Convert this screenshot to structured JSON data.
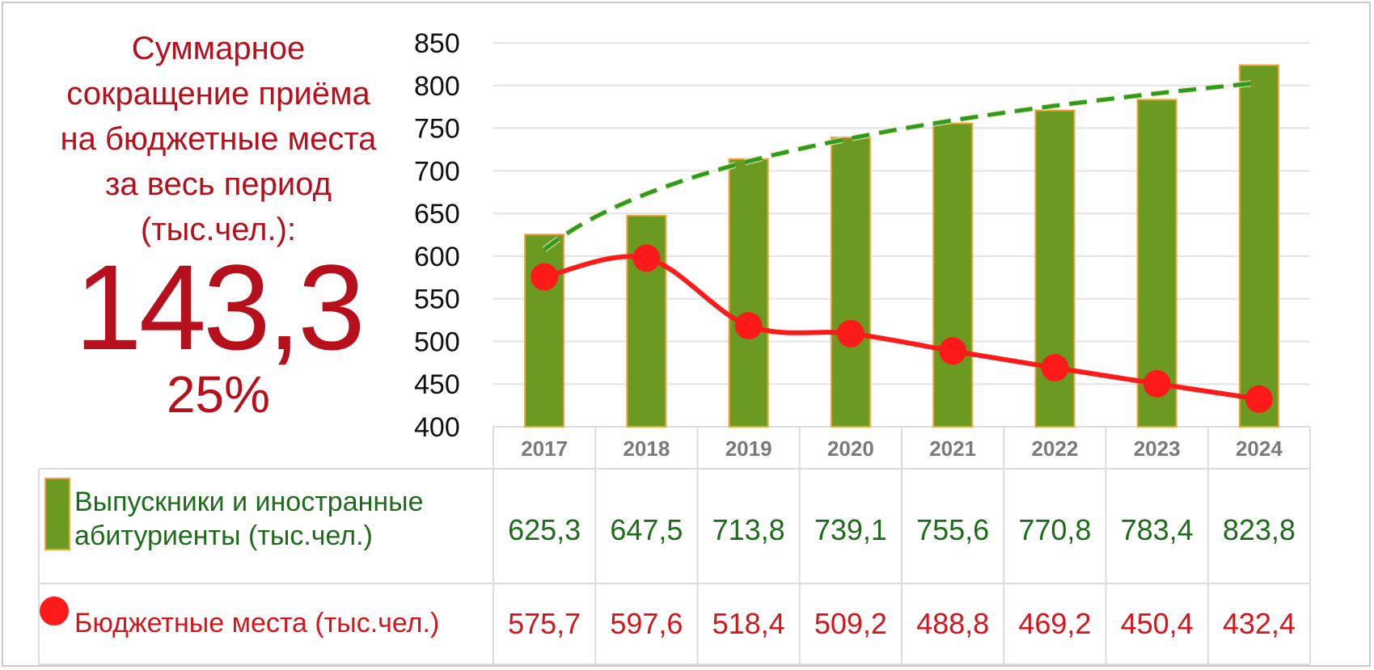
{
  "summary": {
    "title_lines": [
      "Суммарное",
      "сокращение приёма",
      "на бюджетные места",
      "за весь период",
      "(тыс.чел.):"
    ],
    "value": "143,3",
    "percent": "25%"
  },
  "colors": {
    "bar_fill": "#6a9a22",
    "bar_edge": "#f0a23a",
    "trend_line": "#2e9a1e",
    "budget_line": "#ff1a1a",
    "title_red": "#b5101c",
    "legend_green": "#1f6b1c",
    "value_red": "#d4151b"
  },
  "chart_data": {
    "type": "bar",
    "categories": [
      "2017",
      "2018",
      "2019",
      "2020",
      "2021",
      "2022",
      "2023",
      "2024"
    ],
    "y_ticks": [
      "400",
      "450",
      "500",
      "550",
      "600",
      "650",
      "700",
      "750",
      "800",
      "850"
    ],
    "ylim": [
      400,
      850
    ],
    "grid": true,
    "series": [
      {
        "name": "Выпускники и иностранные абитуриенты (тыс.чел.)",
        "legend_lines": [
          "Выпускники и иностранные",
          "абитуриенты (тыс.чел.)"
        ],
        "type": "bar",
        "values": [
          625.3,
          647.5,
          713.8,
          739.1,
          755.6,
          770.8,
          783.4,
          823.8
        ],
        "labels": [
          "625,3",
          "647,5",
          "713,8",
          "739,1",
          "755,6",
          "770,8",
          "783,4",
          "823,8"
        ],
        "trendline": "dashed"
      },
      {
        "name": "Бюджетные места (тыс.чел.)",
        "legend_lines": [
          "Бюджетные места (тыс.чел.)"
        ],
        "type": "line",
        "values": [
          575.7,
          597.6,
          518.4,
          509.2,
          488.8,
          469.2,
          450.4,
          432.4
        ],
        "labels": [
          "575,7",
          "597,6",
          "518,4",
          "509,2",
          "488,8",
          "469,2",
          "450,4",
          "432,4"
        ],
        "smooth": true
      }
    ]
  }
}
